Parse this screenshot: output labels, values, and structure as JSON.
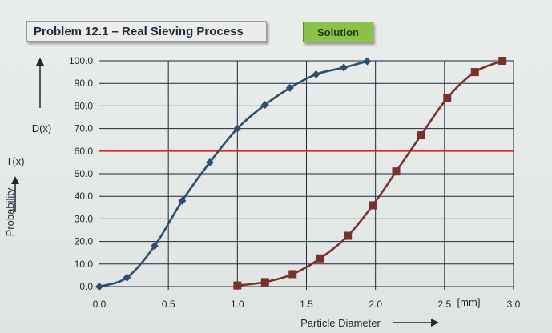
{
  "header": {
    "title": "Problem 12.1 – Real Sieving Process",
    "solution_label": "Solution"
  },
  "chart_data": {
    "type": "line",
    "xlabel": "Particle Diameter",
    "ylabel": "Probability",
    "x_unit_label": "[mm]",
    "xlim": [
      0.0,
      3.0
    ],
    "ylim": [
      0.0,
      100.0
    ],
    "x_ticks": [
      "0.0",
      "0.5",
      "1.0",
      "1.5",
      "2.0",
      "2.5",
      "3.0"
    ],
    "y_ticks": [
      "0.0",
      "10.0",
      "20.0",
      "30.0",
      "40.0",
      "50.0",
      "60.0",
      "70.0",
      "80.0",
      "90.0",
      "100.0"
    ],
    "grid": "horizontal",
    "reference_line": {
      "y": 60.0,
      "color": "#d62828"
    },
    "annotations": {
      "dx_label": "D(x)",
      "tx_label": "T(x)"
    },
    "series": [
      {
        "name": "D(x)",
        "marker": "diamond",
        "color": "#2f4e6e",
        "points": [
          [
            0.0,
            0.0
          ],
          [
            0.2,
            4.0
          ],
          [
            0.4,
            18.0
          ],
          [
            0.6,
            38.0
          ],
          [
            0.8,
            55.0
          ],
          [
            1.0,
            70.0
          ],
          [
            1.2,
            80.5
          ],
          [
            1.38,
            88.0
          ],
          [
            1.57,
            94.0
          ],
          [
            1.77,
            97.0
          ],
          [
            1.94,
            99.8
          ]
        ]
      },
      {
        "name": "T(x)",
        "marker": "square",
        "color": "#7b3030",
        "points": [
          [
            1.0,
            0.5
          ],
          [
            1.2,
            2.0
          ],
          [
            1.4,
            5.5
          ],
          [
            1.6,
            12.5
          ],
          [
            1.8,
            22.5
          ],
          [
            1.98,
            36.0
          ],
          [
            2.15,
            51.0
          ],
          [
            2.33,
            67.0
          ],
          [
            2.52,
            83.5
          ],
          [
            2.72,
            95.0
          ],
          [
            2.92,
            100.0
          ]
        ]
      }
    ]
  }
}
